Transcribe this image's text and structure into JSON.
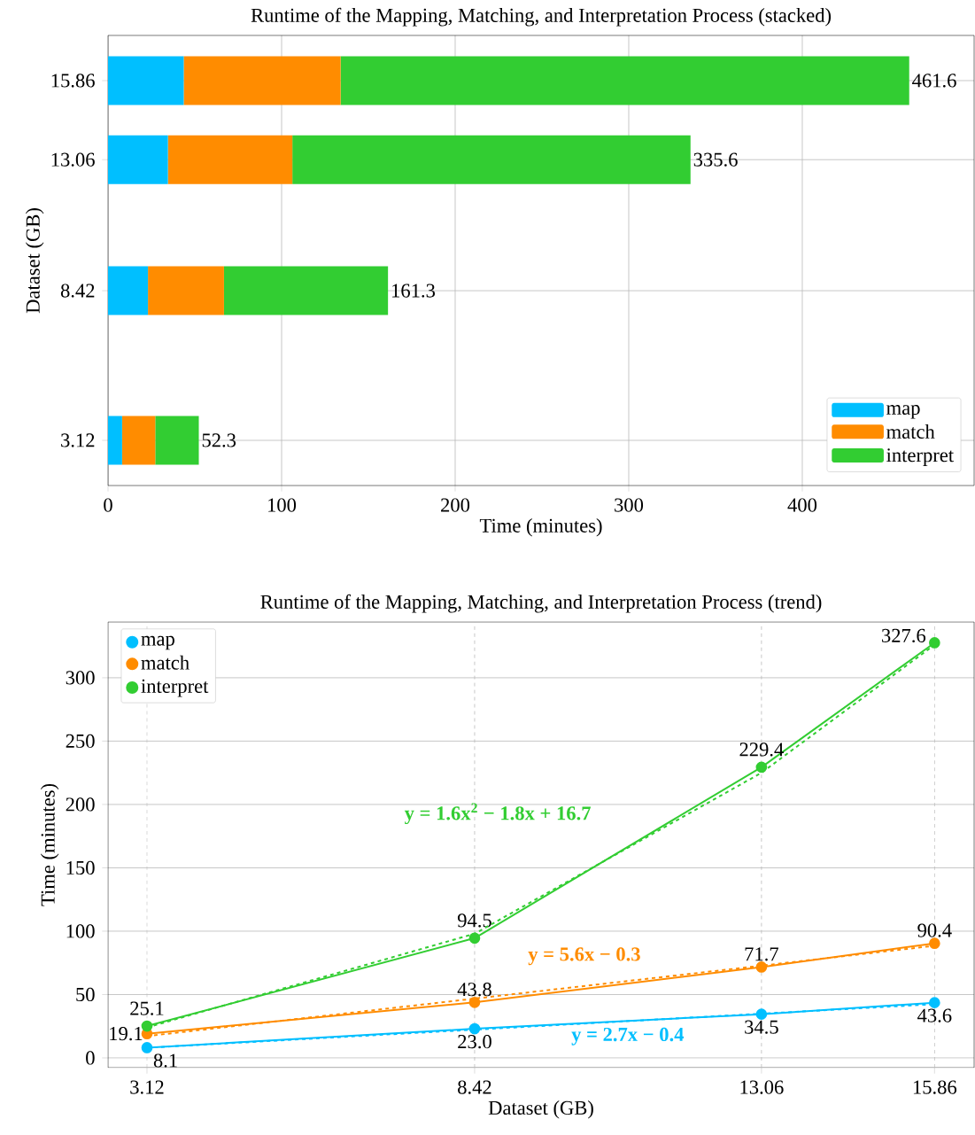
{
  "chart_data": [
    {
      "type": "bar",
      "orientation": "horizontal",
      "stacked": true,
      "title": "Runtime of the Mapping, Matching, and Interpretation Process (stacked)",
      "xlabel": "Time (minutes)",
      "ylabel": "Dataset (GB)",
      "x": [
        3.12,
        8.42,
        13.06,
        15.86
      ],
      "series": [
        {
          "name": "map",
          "color": "#00bfff",
          "values": [
            8.1,
            23.0,
            34.5,
            43.6
          ]
        },
        {
          "name": "match",
          "color": "#ff8c00",
          "values": [
            19.1,
            43.8,
            71.7,
            90.4
          ]
        },
        {
          "name": "interpret",
          "color": "#32cd32",
          "values": [
            25.1,
            94.5,
            229.4,
            327.6
          ]
        }
      ],
      "totals": [
        "52.3",
        "161.3",
        "335.6",
        "461.6"
      ],
      "xlim": [
        0,
        499
      ],
      "xticks": [
        0,
        100,
        200,
        300,
        400
      ],
      "ylim": [
        1.52,
        17.46
      ],
      "yticks": [
        3.12,
        8.42,
        13.06,
        15.86
      ],
      "grid": true,
      "legend": "bottom right"
    },
    {
      "type": "line",
      "title": "Runtime of the Mapping, Matching, and Interpretation Process (trend)",
      "xlabel": "Dataset (GB)",
      "ylabel": "Time (minutes)",
      "x": [
        3.12,
        8.42,
        13.06,
        15.86
      ],
      "series": [
        {
          "name": "map",
          "color": "#00bfff",
          "values": [
            8.1,
            23.0,
            34.5,
            43.6
          ],
          "value_labels": [
            "8.1",
            "23.0",
            "34.5",
            "43.6"
          ],
          "marker": "circle",
          "line_style": "solid"
        },
        {
          "name": "match",
          "color": "#ff8c00",
          "values": [
            19.1,
            43.8,
            71.7,
            90.4
          ],
          "value_labels": [
            "19.1",
            "43.8",
            "71.7",
            "90.4"
          ],
          "marker": "circle",
          "line_style": "solid"
        },
        {
          "name": "interpret",
          "color": "#32cd32",
          "values": [
            25.1,
            94.5,
            229.4,
            327.6
          ],
          "value_labels": [
            "25.1",
            "94.5",
            "229.4",
            "327.6"
          ],
          "marker": "circle",
          "line_style": "solid"
        },
        {
          "type": "line",
          "color": "#00bfff",
          "x": [
            3.12,
            8.42,
            13.06,
            15.86
          ],
          "values": [
            8.0,
            22.3,
            34.9,
            42.4
          ],
          "marker": "none",
          "line_style": "dashed"
        },
        {
          "type": "line",
          "color": "#ff8c00",
          "x": [
            3.12,
            8.42,
            13.06,
            15.86
          ],
          "values": [
            17.2,
            46.8,
            72.8,
            88.5
          ],
          "marker": "none",
          "line_style": "dashed"
        },
        {
          "type": "line",
          "color": "#32cd32",
          "x": [
            3.12,
            8.42,
            13.06,
            15.86
          ],
          "values": [
            24,
            98,
            225,
            326
          ],
          "marker": "none",
          "line_style": "dashed"
        }
      ],
      "annotations": [
        "y = 2.7x − 0.4",
        "y = 5.6x − 0.3",
        "y = 1.6x$^{2}$ − 1.8x + 16.7"
      ],
      "xlim": [
        2.49,
        16.5
      ],
      "xticks": [
        3.12,
        8.42,
        13.06,
        15.86
      ],
      "ylim": [
        -7.7,
        344
      ],
      "yticks": [
        0,
        50,
        100,
        150,
        200,
        250,
        300
      ],
      "grid": true,
      "legend": "top left"
    }
  ]
}
